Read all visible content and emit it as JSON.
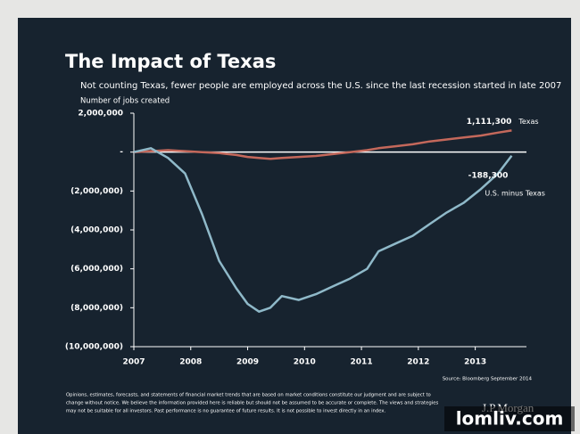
{
  "chart_data": {
    "type": "line",
    "title": "The Impact of Texas",
    "subtitle": "Not counting Texas, fewer people are employed across the U.S. since the last recession started in late 2007",
    "y_label": "Number of jobs created",
    "source": "Source: Bloomberg September 2014",
    "notes": [
      "Opinions, estimates, forecasts, and statements of financial market trends that are based on market conditions constitute our judgment and are subject to",
      "change without notice. We believe the information provided here is reliable but should not be assumed to be accurate or complete. The views and strategies",
      "may not be suitable for all investors. Past performance is no guarantee of future results. It is not possible to invest directly in an index."
    ],
    "brand": "J.P.Morgan",
    "watermark": "lomliv.com",
    "x": [
      2007.0,
      2007.3,
      2007.6,
      2007.9,
      2008.2,
      2008.5,
      2008.8,
      2009.0,
      2009.2,
      2009.4,
      2009.6,
      2009.9,
      2010.2,
      2010.5,
      2010.8,
      2011.1,
      2011.3,
      2011.6,
      2011.9,
      2012.2,
      2012.5,
      2012.8,
      2013.1,
      2013.4,
      2013.64
    ],
    "xlim": [
      2007,
      2013.9
    ],
    "xticks": [
      2007,
      2008,
      2009,
      2010,
      2011,
      2012,
      2013
    ],
    "ylim": [
      -10000000,
      2000000
    ],
    "yticks": [
      {
        "value": 2000000,
        "label": "2,000,000"
      },
      {
        "value": 0,
        "label": "-"
      },
      {
        "value": -2000000,
        "label": "(2,000,000)"
      },
      {
        "value": -4000000,
        "label": "(4,000,000)"
      },
      {
        "value": -6000000,
        "label": "(6,000,000)"
      },
      {
        "value": -8000000,
        "label": "(8,000,000)"
      },
      {
        "value": -10000000,
        "label": "(10,000,000)"
      }
    ],
    "grid": false,
    "series": [
      {
        "name": "Texas",
        "color": "#c4685b",
        "values": [
          0,
          50000,
          100000,
          50000,
          0,
          -50000,
          -150000,
          -250000,
          -300000,
          -350000,
          -300000,
          -250000,
          -200000,
          -100000,
          0,
          100000,
          200000,
          300000,
          400000,
          550000,
          650000,
          750000,
          850000,
          1000000,
          1111300
        ],
        "value_labels": [
          null,
          null,
          null,
          null,
          null,
          null,
          null,
          null,
          null,
          null,
          null,
          null,
          null,
          null,
          null,
          null,
          null,
          null,
          null,
          null,
          null,
          null,
          null,
          null,
          "1,111,300"
        ]
      },
      {
        "name": "U.S. minus Texas",
        "color": "#8fb9c9",
        "values": [
          0,
          200000,
          -300000,
          -1100000,
          -3200000,
          -5600000,
          -7000000,
          -7800000,
          -8200000,
          -8000000,
          -7400000,
          -7600000,
          -7300000,
          -6900000,
          -6500000,
          -6000000,
          -5100000,
          -4700000,
          -4300000,
          -3700000,
          -3100000,
          -2600000,
          -1900000,
          -1100000,
          -188300
        ],
        "value_labels": [
          null,
          null,
          null,
          null,
          null,
          null,
          null,
          null,
          null,
          null,
          null,
          null,
          null,
          null,
          null,
          null,
          null,
          null,
          null,
          null,
          null,
          null,
          null,
          null,
          "-188,300"
        ]
      }
    ]
  }
}
